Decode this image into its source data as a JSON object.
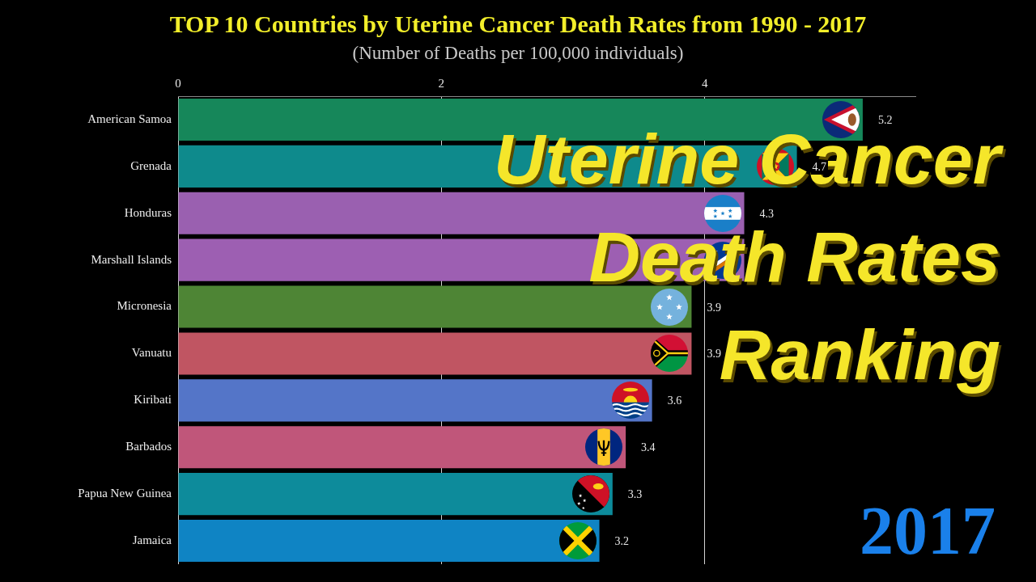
{
  "chart_data": {
    "type": "bar",
    "orientation": "horizontal",
    "title": "TOP 10 Countries by Uterine Cancer Death Rates from 1990 - 2017",
    "subtitle": "(Number of Deaths per 100,000 individuals)",
    "categories": [
      "American Samoa",
      "Grenada",
      "Honduras",
      "Marshall Islands",
      "Micronesia",
      "Vanuatu",
      "Kiribati",
      "Barbados",
      "Papua New Guinea",
      "Jamaica"
    ],
    "values": [
      5.2,
      4.7,
      4.3,
      4.3,
      3.9,
      3.9,
      3.6,
      3.4,
      3.3,
      3.2
    ],
    "colors": [
      "#16875a",
      "#0e8a8c",
      "#9a60b0",
      "#9d5fb2",
      "#4e8535",
      "#c05562",
      "#5475c8",
      "#c0567a",
      "#0d8b9b",
      "#0f84c4"
    ],
    "value_labels": [
      "5.2",
      "4.7",
      "4.3",
      null,
      "3.9",
      "3.9",
      "3.6",
      "3.4",
      "3.3",
      "3.2"
    ],
    "xlim": [
      0,
      5.6
    ],
    "xticks": [
      0,
      2,
      4
    ],
    "grid": "x",
    "annotations": [
      "Uterine Cancer Death Rates Ranking",
      "2017"
    ]
  }
}
